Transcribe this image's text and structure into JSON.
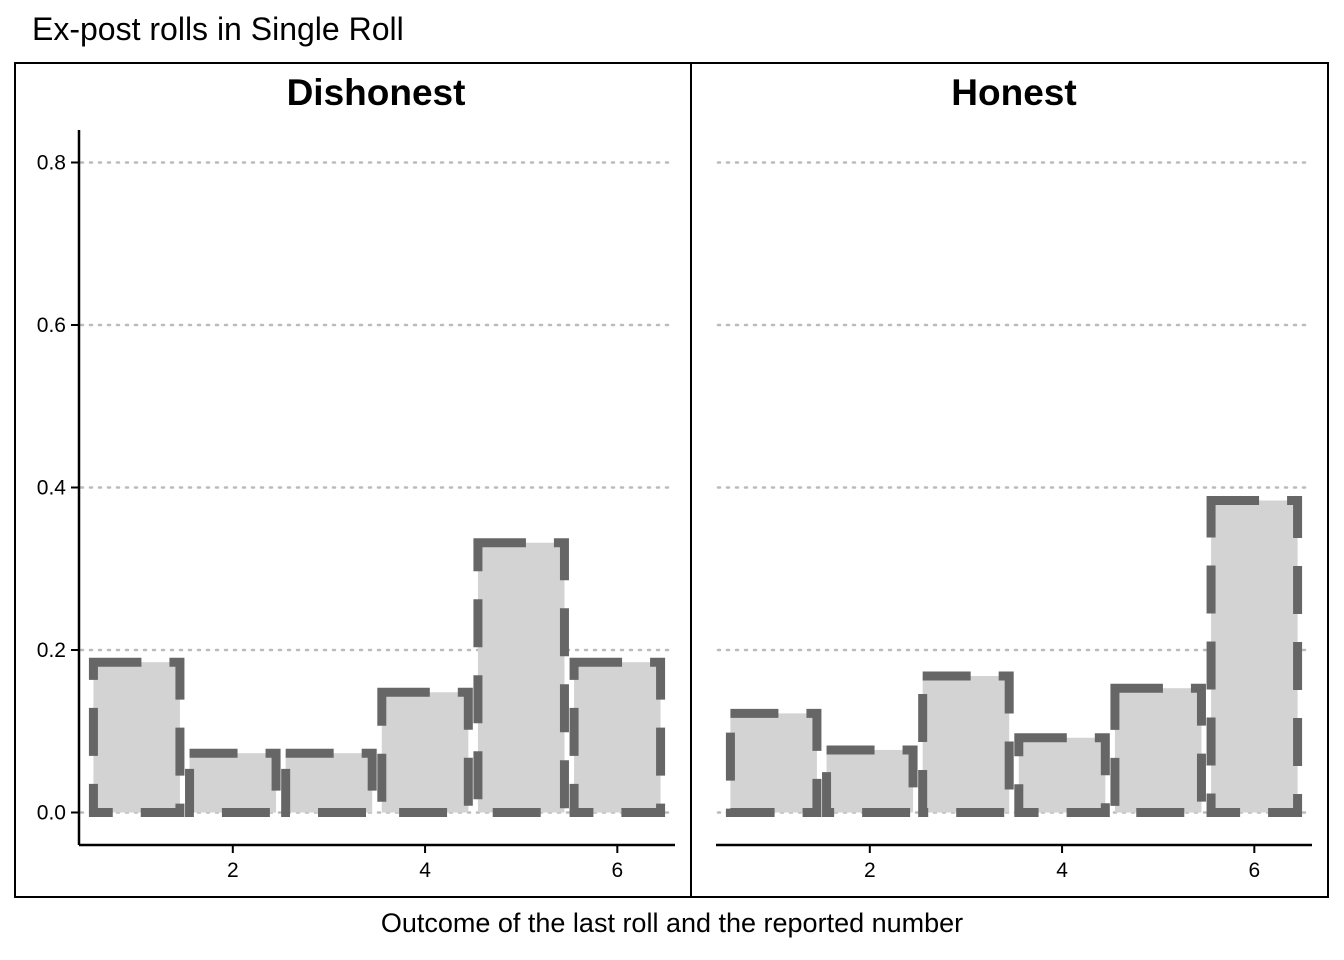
{
  "chart_data": {
    "type": "bar",
    "title": "Ex-post rolls in Single Roll",
    "xlabel": "Outcome of the last roll and the reported number",
    "ylabel": "",
    "ylim": [
      -0.04,
      0.84
    ],
    "yticks": [
      0.0,
      0.2,
      0.4,
      0.6,
      0.8
    ],
    "ytick_labels": [
      "0.0",
      "0.2",
      "0.4",
      "0.6",
      "0.8"
    ],
    "xlim": [
      0.4,
      6.6
    ],
    "xticks": [
      2,
      4,
      6
    ],
    "xtick_labels": [
      "2",
      "4",
      "6"
    ],
    "grid": "horizontal dotted",
    "legend": "none",
    "categories": [
      1,
      2,
      3,
      4,
      5,
      6
    ],
    "panels": [
      {
        "name": "Dishonest",
        "last_roll": [
          0.185,
          0.073,
          0.073,
          0.148,
          0.332,
          0.185
        ],
        "reported": [
          0.185,
          0.073,
          0.073,
          0.148,
          0.332,
          0.185
        ]
      },
      {
        "name": "Honest",
        "last_roll": [
          0.122,
          0.077,
          0.168,
          0.092,
          0.153,
          0.384
        ],
        "reported": [
          0.122,
          0.077,
          0.168,
          0.092,
          0.153,
          0.384
        ]
      }
    ],
    "colors": {
      "fill": "#d3d3d3",
      "outline": "#666666",
      "grid": "#bbbbbb",
      "axis": "#000000"
    }
  }
}
